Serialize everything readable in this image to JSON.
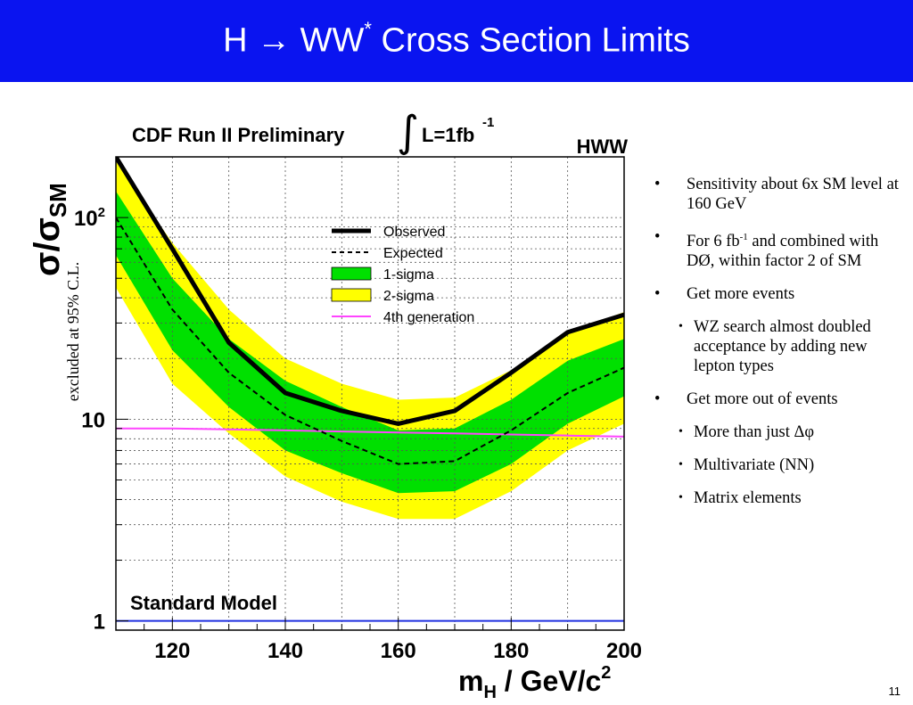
{
  "slide": {
    "title_left": "H → WW",
    "title_sup": "*",
    "title_right": " Cross Section Limits",
    "excluded_label": "excluded at 95% C.L.",
    "page_number": "11",
    "bullets": [
      {
        "level": 1,
        "text": "Sensitivity about 6x SM level at 160 GeV"
      },
      {
        "level": 1,
        "text_a": "For 6 fb",
        "sup": "-1",
        "text_b": " and combined with DØ, within factor 2 of SM"
      },
      {
        "level": 1,
        "text": " Get more events"
      },
      {
        "level": 2,
        "text": "WZ search almost doubled acceptance by adding new lepton types"
      },
      {
        "level": 1,
        "text": "Get more out of events"
      },
      {
        "level": 2,
        "text": "More than just Δφ"
      },
      {
        "level": 2,
        "text": "Multivariate (NN)"
      },
      {
        "level": 2,
        "text": "Matrix elements"
      }
    ]
  },
  "chart_data": {
    "type": "line",
    "title_left": "CDF Run II Preliminary",
    "title_integral": "∫",
    "title_right": "L=1fb",
    "title_sup": "-1",
    "corner_label": "HWW",
    "sm_label": "Standard Model",
    "xlabel_m": "m",
    "xlabel_sub": "H",
    "xlabel_rest": " / GeV/c",
    "xlabel_sup": "2",
    "ylabel_sigma": "σ/σ",
    "ylabel_sub": "SM",
    "xlim": [
      110,
      200
    ],
    "ylim": [
      0.9,
      200
    ],
    "yscale": "log",
    "grid": true,
    "x_ticks": [
      120,
      140,
      160,
      180,
      200
    ],
    "y_ticks": [
      {
        "v": 1,
        "label": "1"
      },
      {
        "v": 10,
        "label": "10"
      },
      {
        "v": 100,
        "label": "10",
        "sup": "2"
      }
    ],
    "legend_position": "upper-center",
    "x": [
      110,
      120,
      130,
      140,
      150,
      160,
      170,
      180,
      190,
      200
    ],
    "observed": [
      200,
      70,
      24,
      13.5,
      11,
      9.5,
      11,
      17,
      27,
      33
    ],
    "expected": [
      100,
      35,
      17,
      10.5,
      7.8,
      6.0,
      6.2,
      8.8,
      13.5,
      18
    ],
    "one_sigma_low": [
      65,
      22,
      11.5,
      7.0,
      5.4,
      4.3,
      4.4,
      6.0,
      9.5,
      13
    ],
    "one_sigma_high": [
      135,
      50,
      25,
      15.5,
      11.5,
      8.8,
      9.0,
      12.5,
      19.5,
      25
    ],
    "two_sigma_low": [
      45,
      15,
      8.5,
      5.2,
      3.9,
      3.2,
      3.2,
      4.4,
      7.0,
      9.5
    ],
    "two_sigma_high": [
      190,
      75,
      35,
      20,
      15,
      12.5,
      12.8,
      17.5,
      27,
      34
    ],
    "fourth_generation": [
      9.0,
      9.0,
      8.9,
      8.8,
      8.7,
      8.6,
      8.5,
      8.4,
      8.3,
      8.2
    ],
    "sm_line": 1,
    "legend": [
      {
        "key": "observed",
        "label": "Observed"
      },
      {
        "key": "expected",
        "label": "Expected"
      },
      {
        "key": "one_sigma",
        "label": " 1-sigma"
      },
      {
        "key": "two_sigma",
        "label": " 2-sigma"
      },
      {
        "key": "fourth_generation",
        "label": "4th generation"
      }
    ],
    "colors": {
      "observed": "#000000",
      "expected": "#000000",
      "one_sigma": "#00e000",
      "two_sigma": "#ffff00",
      "fourth_generation": "#ff44ff",
      "sm": "#2030e0"
    }
  }
}
